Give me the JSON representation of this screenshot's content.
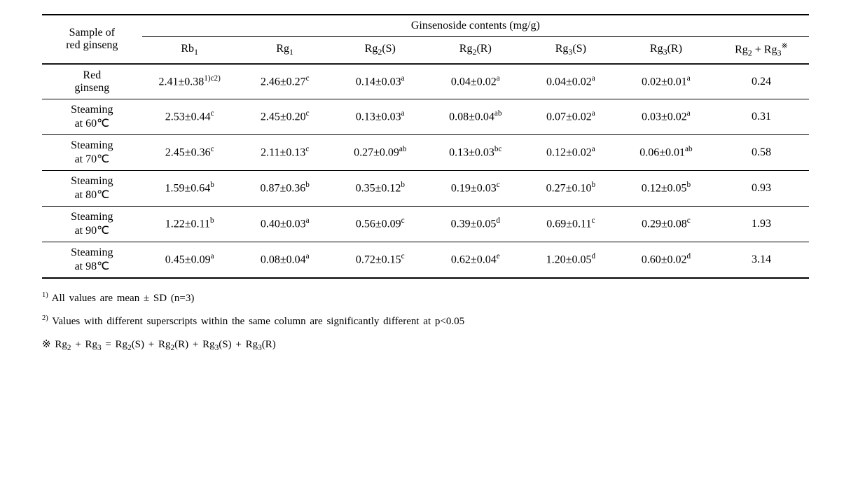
{
  "table": {
    "header": {
      "sample_label_line1": "Sample of",
      "sample_label_line2": "red ginseng",
      "group_label": "Ginsenoside contents (mg/g)",
      "columns": {
        "c1_base": "Rb",
        "c1_sub": "1",
        "c2_base": "Rg",
        "c2_sub": "1",
        "c3_base": "Rg",
        "c3_sub": "2",
        "c3_suffix": "(S)",
        "c4_base": "Rg",
        "c4_sub": "2",
        "c4_suffix": "(R)",
        "c5_base": "Rg",
        "c5_sub": "3",
        "c5_suffix": "(S)",
        "c6_base": "Rg",
        "c6_sub": "3",
        "c6_suffix": "(R)",
        "c7_a_base": "Rg",
        "c7_a_sub": "2",
        "c7_plus": " + ",
        "c7_b_base": "Rg",
        "c7_b_sub": "3",
        "c7_mark": "※"
      }
    },
    "rows": [
      {
        "sample_l1": "Red",
        "sample_l2": "ginseng",
        "c1_val": "2.41±0.38",
        "c1_sup": "1)c2)",
        "c2_val": "2.46±0.27",
        "c2_sup": "c",
        "c3_val": "0.14±0.03",
        "c3_sup": "a",
        "c4_val": "0.04±0.02",
        "c4_sup": "a",
        "c5_val": "0.04±0.02",
        "c5_sup": "a",
        "c6_val": "0.02±0.01",
        "c6_sup": "a",
        "c7_val": "0.24"
      },
      {
        "sample_l1": "Steaming",
        "sample_l2": "at 60℃",
        "c1_val": "2.53±0.44",
        "c1_sup": "c",
        "c2_val": "2.45±0.20",
        "c2_sup": "c",
        "c3_val": "0.13±0.03",
        "c3_sup": "a",
        "c4_val": "0.08±0.04",
        "c4_sup": "ab",
        "c5_val": "0.07±0.02",
        "c5_sup": "a",
        "c6_val": "0.03±0.02",
        "c6_sup": "a",
        "c7_val": "0.31"
      },
      {
        "sample_l1": "Steaming",
        "sample_l2": "at 70℃",
        "c1_val": "2.45±0.36",
        "c1_sup": "c",
        "c2_val": "2.11±0.13",
        "c2_sup": "c",
        "c3_val": "0.27±0.09",
        "c3_sup": "ab",
        "c4_val": "0.13±0.03",
        "c4_sup": "bc",
        "c5_val": "0.12±0.02",
        "c5_sup": "a",
        "c6_val": "0.06±0.01",
        "c6_sup": "ab",
        "c7_val": "0.58"
      },
      {
        "sample_l1": "Steaming",
        "sample_l2": "at 80℃",
        "c1_val": "1.59±0.64",
        "c1_sup": "b",
        "c2_val": "0.87±0.36",
        "c2_sup": "b",
        "c3_val": "0.35±0.12",
        "c3_sup": "b",
        "c4_val": "0.19±0.03",
        "c4_sup": "c",
        "c5_val": "0.27±0.10",
        "c5_sup": "b",
        "c6_val": "0.12±0.05",
        "c6_sup": "b",
        "c7_val": "0.93"
      },
      {
        "sample_l1": "Steaming",
        "sample_l2": "at 90℃",
        "c1_val": "1.22±0.11",
        "c1_sup": "b",
        "c2_val": "0.40±0.03",
        "c2_sup": "a",
        "c3_val": "0.56±0.09",
        "c3_sup": "c",
        "c4_val": "0.39±0.05",
        "c4_sup": "d",
        "c5_val": "0.69±0.11",
        "c5_sup": "c",
        "c6_val": "0.29±0.08",
        "c6_sup": "c",
        "c7_val": "1.93"
      },
      {
        "sample_l1": "Steaming",
        "sample_l2": "at 98℃",
        "c1_val": "0.45±0.09",
        "c1_sup": "a",
        "c2_val": "0.08±0.04",
        "c2_sup": "a",
        "c3_val": "0.72±0.15",
        "c3_sup": "c",
        "c4_val": "0.62±0.04",
        "c4_sup": "e",
        "c5_val": "1.20±0.05",
        "c5_sup": "d",
        "c6_val": "0.60±0.02",
        "c6_sup": "d",
        "c7_val": "3.14"
      }
    ]
  },
  "footnotes": {
    "f1_sup": "1)",
    "f1_text": " All values are mean ± SD (n=3)",
    "f2_sup": "2)",
    "f2_text": " Values with different superscripts within the same column are significantly different at p<0.05",
    "f3_mark": "※ ",
    "f3_a_base": "Rg",
    "f3_a_sub": "2",
    "f3_plus1": " + ",
    "f3_b_base": "Rg",
    "f3_b_sub": "3",
    "f3_eq": " = ",
    "f3_c_base": "Rg",
    "f3_c_sub": "2",
    "f3_c_suffix": "(S)",
    "f3_plus2": " + ",
    "f3_d_base": "Rg",
    "f3_d_sub": "2",
    "f3_d_suffix": "(R)",
    "f3_plus3": " + ",
    "f3_e_base": "Rg",
    "f3_e_sub": "3",
    "f3_e_suffix": "(S)",
    "f3_plus4": " +  ",
    "f3_f_base": "Rg",
    "f3_f_sub": "3",
    "f3_f_suffix": "(R)"
  }
}
